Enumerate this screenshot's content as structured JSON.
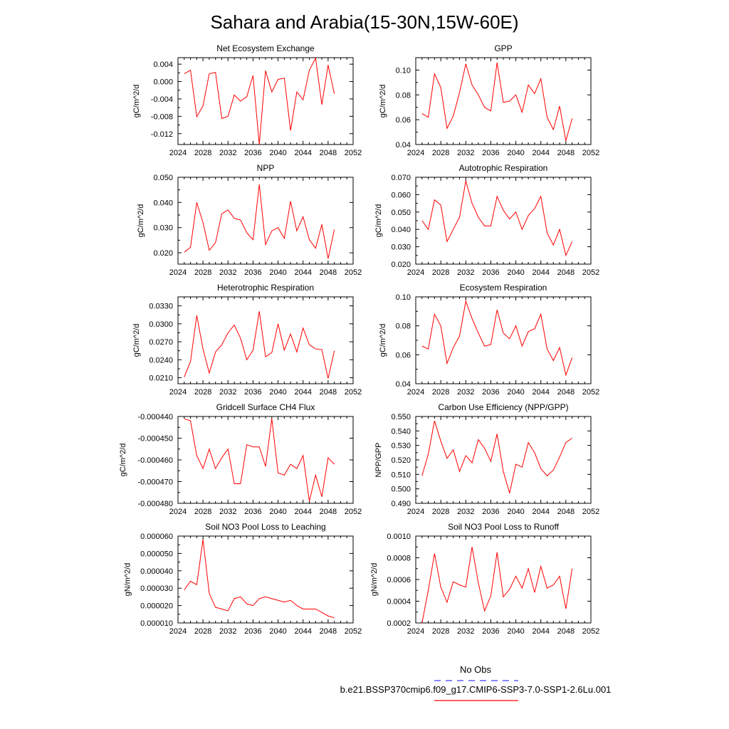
{
  "title": "Sahara and Arabia(15-30N,15W-60E)",
  "legend": {
    "obs_label": "No Obs",
    "obs_color": "#3f3fff",
    "model_label": "b.e21.BSSP370cmip6.f09_g17.CMIP6-SSP3-7.0-SSP1-2.6Lu.001",
    "model_color": "#ff0000"
  },
  "chart_data": [
    {
      "type": "line",
      "title": "Net Ecosystem Exchange",
      "ylabel": "gC/m^2/d",
      "xlabel": "",
      "xlim": [
        2024,
        2052
      ],
      "xticks": [
        2024,
        2028,
        2032,
        2036,
        2040,
        2044,
        2048,
        2052
      ],
      "ylim": [
        -0.0145,
        0.0055
      ],
      "yticks": [
        -0.012,
        -0.008,
        -0.004,
        0.0,
        0.004
      ],
      "ytick_labels": [
        "-0.012",
        "-0.008",
        "-0.004",
        "0.000",
        "0.004"
      ],
      "x": [
        2025,
        2026,
        2027,
        2028,
        2029,
        2030,
        2031,
        2032,
        2033,
        2034,
        2035,
        2036,
        2037,
        2038,
        2039,
        2040,
        2041,
        2042,
        2043,
        2044,
        2045,
        2046,
        2047,
        2048,
        2049
      ],
      "series": [
        {
          "values": [
            0.0018,
            0.0026,
            -0.0081,
            -0.0056,
            0.0018,
            0.0021,
            -0.0085,
            -0.008,
            -0.0031,
            -0.0045,
            -0.0035,
            0.0014,
            -0.0145,
            0.0025,
            -0.0024,
            0.0005,
            0.0008,
            -0.0113,
            -0.0024,
            -0.0042,
            0.0026,
            0.0054,
            -0.0053,
            0.0038,
            -0.0028
          ]
        }
      ]
    },
    {
      "type": "line",
      "title": "GPP",
      "ylabel": "gC/m^2/d",
      "xlabel": "",
      "xlim": [
        2024,
        2052
      ],
      "xticks": [
        2024,
        2028,
        2032,
        2036,
        2040,
        2044,
        2048,
        2052
      ],
      "ylim": [
        0.04,
        0.11
      ],
      "yticks": [
        0.04,
        0.06,
        0.08,
        0.1
      ],
      "ytick_labels": [
        "0.04",
        "0.06",
        "0.08",
        "0.10"
      ],
      "x": [
        2025,
        2026,
        2027,
        2028,
        2029,
        2030,
        2031,
        2032,
        2033,
        2034,
        2035,
        2036,
        2037,
        2038,
        2039,
        2040,
        2041,
        2042,
        2043,
        2044,
        2045,
        2046,
        2047,
        2048,
        2049
      ],
      "series": [
        {
          "values": [
            0.065,
            0.062,
            0.097,
            0.086,
            0.053,
            0.063,
            0.082,
            0.105,
            0.088,
            0.08,
            0.07,
            0.067,
            0.106,
            0.074,
            0.075,
            0.08,
            0.066,
            0.088,
            0.081,
            0.093,
            0.062,
            0.052,
            0.071,
            0.043,
            0.061
          ]
        }
      ]
    },
    {
      "type": "line",
      "title": "NPP",
      "ylabel": "gC/m^2/d",
      "xlabel": "",
      "xlim": [
        2024,
        2052
      ],
      "xticks": [
        2024,
        2028,
        2032,
        2036,
        2040,
        2044,
        2048,
        2052
      ],
      "ylim": [
        0.0155,
        0.05
      ],
      "yticks": [
        0.02,
        0.03,
        0.04,
        0.05
      ],
      "ytick_labels": [
        "0.020",
        "0.030",
        "0.040",
        "0.050"
      ],
      "x": [
        2025,
        2026,
        2027,
        2028,
        2029,
        2030,
        2031,
        2032,
        2033,
        2034,
        2035,
        2036,
        2037,
        2038,
        2039,
        2040,
        2041,
        2042,
        2043,
        2044,
        2045,
        2046,
        2047,
        2048,
        2049
      ],
      "series": [
        {
          "values": [
            0.0202,
            0.0222,
            0.04,
            0.032,
            0.021,
            0.024,
            0.0355,
            0.037,
            0.0337,
            0.033,
            0.028,
            0.0252,
            0.0472,
            0.0233,
            0.0287,
            0.03,
            0.0257,
            0.0405,
            0.0287,
            0.0343,
            0.0252,
            0.0218,
            0.0313,
            0.0177,
            0.0292
          ]
        }
      ]
    },
    {
      "type": "line",
      "title": "Autotrophic Respiration",
      "ylabel": "gC/m^2/d",
      "xlabel": "",
      "xlim": [
        2024,
        2052
      ],
      "xticks": [
        2024,
        2028,
        2032,
        2036,
        2040,
        2044,
        2048,
        2052
      ],
      "ylim": [
        0.02,
        0.07
      ],
      "yticks": [
        0.02,
        0.03,
        0.04,
        0.05,
        0.06,
        0.07
      ],
      "ytick_labels": [
        "0.020",
        "0.030",
        "0.040",
        "0.050",
        "0.060",
        "0.070"
      ],
      "x": [
        2025,
        2026,
        2027,
        2028,
        2029,
        2030,
        2031,
        2032,
        2033,
        2034,
        2035,
        2036,
        2037,
        2038,
        2039,
        2040,
        2041,
        2042,
        2043,
        2044,
        2045,
        2046,
        2047,
        2048,
        2049
      ],
      "series": [
        {
          "values": [
            0.045,
            0.04,
            0.057,
            0.054,
            0.033,
            0.04,
            0.047,
            0.068,
            0.055,
            0.047,
            0.042,
            0.042,
            0.059,
            0.051,
            0.046,
            0.05,
            0.04,
            0.048,
            0.052,
            0.059,
            0.038,
            0.031,
            0.04,
            0.025,
            0.033
          ]
        }
      ]
    },
    {
      "type": "line",
      "title": "Heterotrophic Respiration",
      "ylabel": "gC/m^2/d",
      "xlabel": "",
      "xlim": [
        2024,
        2052
      ],
      "xticks": [
        2024,
        2028,
        2032,
        2036,
        2040,
        2044,
        2048,
        2052
      ],
      "ylim": [
        0.02,
        0.0345
      ],
      "yticks": [
        0.021,
        0.024,
        0.027,
        0.03,
        0.033
      ],
      "ytick_labels": [
        "0.0210",
        "0.0240",
        "0.0270",
        "0.0300",
        "0.0330"
      ],
      "x": [
        2025,
        2026,
        2027,
        2028,
        2029,
        2030,
        2031,
        2032,
        2033,
        2034,
        2035,
        2036,
        2037,
        2038,
        2039,
        2040,
        2041,
        2042,
        2043,
        2044,
        2045,
        2046,
        2047,
        2048,
        2049
      ],
      "series": [
        {
          "values": [
            0.0211,
            0.0237,
            0.0314,
            0.0258,
            0.0218,
            0.0253,
            0.0265,
            0.0285,
            0.0298,
            0.0276,
            0.024,
            0.0256,
            0.0321,
            0.0245,
            0.0252,
            0.03,
            0.0256,
            0.0283,
            0.0253,
            0.0293,
            0.0265,
            0.0258,
            0.0257,
            0.0209,
            0.0255
          ]
        }
      ]
    },
    {
      "type": "line",
      "title": "Ecosystem Respiration",
      "ylabel": "gC/m^2/d",
      "xlabel": "",
      "xlim": [
        2024,
        2052
      ],
      "xticks": [
        2024,
        2028,
        2032,
        2036,
        2040,
        2044,
        2048,
        2052
      ],
      "ylim": [
        0.04,
        0.1
      ],
      "yticks": [
        0.04,
        0.06,
        0.08,
        0.1
      ],
      "ytick_labels": [
        "0.04",
        "0.06",
        "0.08",
        "0.10"
      ],
      "x": [
        2025,
        2026,
        2027,
        2028,
        2029,
        2030,
        2031,
        2032,
        2033,
        2034,
        2035,
        2036,
        2037,
        2038,
        2039,
        2040,
        2041,
        2042,
        2043,
        2044,
        2045,
        2046,
        2047,
        2048,
        2049
      ],
      "series": [
        {
          "values": [
            0.066,
            0.064,
            0.088,
            0.08,
            0.054,
            0.065,
            0.073,
            0.097,
            0.085,
            0.075,
            0.066,
            0.067,
            0.091,
            0.075,
            0.071,
            0.08,
            0.066,
            0.076,
            0.078,
            0.088,
            0.064,
            0.056,
            0.065,
            0.046,
            0.058
          ]
        }
      ]
    },
    {
      "type": "line",
      "title": "Gridcell Surface CH4 Flux",
      "ylabel": "gC/m^2/d",
      "xlabel": "",
      "xlim": [
        2024,
        2052
      ],
      "xticks": [
        2024,
        2028,
        2032,
        2036,
        2040,
        2044,
        2048,
        2052
      ],
      "ylim": [
        -0.00048,
        -0.00044
      ],
      "yticks": [
        -0.00048,
        -0.00047,
        -0.00046,
        -0.00045,
        -0.00044
      ],
      "ytick_labels": [
        "-0.000480",
        "-0.000470",
        "-0.000460",
        "-0.000450",
        "-0.000440"
      ],
      "x": [
        2025,
        2026,
        2027,
        2028,
        2029,
        2030,
        2031,
        2032,
        2033,
        2034,
        2035,
        2036,
        2037,
        2038,
        2039,
        2040,
        2041,
        2042,
        2043,
        2044,
        2045,
        2046,
        2047,
        2048,
        2049
      ],
      "series": [
        {
          "values": [
            -0.000441,
            -0.000442,
            -0.000458,
            -0.000464,
            -0.000455,
            -0.000464,
            -0.000459,
            -0.000455,
            -0.000471,
            -0.000471,
            -0.000453,
            -0.000454,
            -0.000454,
            -0.000463,
            -0.000441,
            -0.000466,
            -0.000467,
            -0.000462,
            -0.000464,
            -0.000458,
            -0.000479,
            -0.000467,
            -0.000477,
            -0.000459,
            -0.000462
          ]
        }
      ]
    },
    {
      "type": "line",
      "title": "Carbon Use Efficiency (NPP/GPP)",
      "ylabel": "NPP/GPP",
      "xlabel": "",
      "xlim": [
        2024,
        2052
      ],
      "xticks": [
        2024,
        2028,
        2032,
        2036,
        2040,
        2044,
        2048,
        2052
      ],
      "ylim": [
        0.49,
        0.55
      ],
      "yticks": [
        0.49,
        0.5,
        0.51,
        0.52,
        0.53,
        0.54,
        0.55
      ],
      "ytick_labels": [
        "0.490",
        "0.500",
        "0.510",
        "0.520",
        "0.530",
        "0.540",
        "0.550"
      ],
      "x": [
        2025,
        2026,
        2027,
        2028,
        2029,
        2030,
        2031,
        2032,
        2033,
        2034,
        2035,
        2036,
        2037,
        2038,
        2039,
        2040,
        2041,
        2042,
        2043,
        2044,
        2045,
        2046,
        2047,
        2048,
        2049
      ],
      "series": [
        {
          "values": [
            0.509,
            0.524,
            0.547,
            0.533,
            0.521,
            0.527,
            0.512,
            0.523,
            0.518,
            0.534,
            0.528,
            0.519,
            0.538,
            0.512,
            0.497,
            0.517,
            0.515,
            0.532,
            0.525,
            0.514,
            0.509,
            0.513,
            0.522,
            0.532,
            0.535
          ]
        }
      ]
    },
    {
      "type": "line",
      "title": "Soil NO3 Pool Loss to Leaching",
      "ylabel": "gN/m^2/d",
      "xlabel": "",
      "xlim": [
        2024,
        2052
      ],
      "xticks": [
        2024,
        2028,
        2032,
        2036,
        2040,
        2044,
        2048,
        2052
      ],
      "ylim": [
        1e-05,
        6e-05
      ],
      "yticks": [
        1e-05,
        2e-05,
        3e-05,
        4e-05,
        5e-05,
        6e-05
      ],
      "ytick_labels": [
        "0.000010",
        "0.000020",
        "0.000030",
        "0.000040",
        "0.000050",
        "0.000060"
      ],
      "x": [
        2025,
        2026,
        2027,
        2028,
        2029,
        2030,
        2031,
        2032,
        2033,
        2034,
        2035,
        2036,
        2037,
        2038,
        2039,
        2040,
        2041,
        2042,
        2043,
        2044,
        2045,
        2046,
        2047,
        2048,
        2049
      ],
      "series": [
        {
          "values": [
            2.9e-05,
            3.4e-05,
            3.2e-05,
            5.8e-05,
            2.7e-05,
            1.9e-05,
            1.8e-05,
            1.7e-05,
            2.4e-05,
            2.5e-05,
            2.1e-05,
            2e-05,
            2.4e-05,
            2.5e-05,
            2.4e-05,
            2.3e-05,
            2.2e-05,
            2.3e-05,
            2e-05,
            1.8e-05,
            1.8e-05,
            1.8e-05,
            1.6e-05,
            1.4e-05,
            1.3e-05
          ]
        }
      ]
    },
    {
      "type": "line",
      "title": "Soil NO3 Pool Loss to Runoff",
      "ylabel": "gN/m^2/d",
      "xlabel": "",
      "xlim": [
        2024,
        2052
      ],
      "xticks": [
        2024,
        2028,
        2032,
        2036,
        2040,
        2044,
        2048,
        2052
      ],
      "ylim": [
        0.0002,
        0.001
      ],
      "yticks": [
        0.0002,
        0.0004,
        0.0006,
        0.0008,
        0.001
      ],
      "ytick_labels": [
        "0.0002",
        "0.0004",
        "0.0006",
        "0.0008",
        "0.0010"
      ],
      "x": [
        2025,
        2026,
        2027,
        2028,
        2029,
        2030,
        2031,
        2032,
        2033,
        2034,
        2035,
        2036,
        2037,
        2038,
        2039,
        2040,
        2041,
        2042,
        2043,
        2044,
        2045,
        2046,
        2047,
        2048,
        2049
      ],
      "series": [
        {
          "values": [
            0.0002,
            0.0005,
            0.00084,
            0.00053,
            0.00039,
            0.00058,
            0.00055,
            0.00053,
            0.0009,
            0.00057,
            0.00031,
            0.00045,
            0.00085,
            0.00044,
            0.00051,
            0.00063,
            0.00052,
            0.0007,
            0.00048,
            0.00072,
            0.00052,
            0.00055,
            0.00063,
            0.00033,
            0.0007
          ]
        }
      ]
    }
  ]
}
